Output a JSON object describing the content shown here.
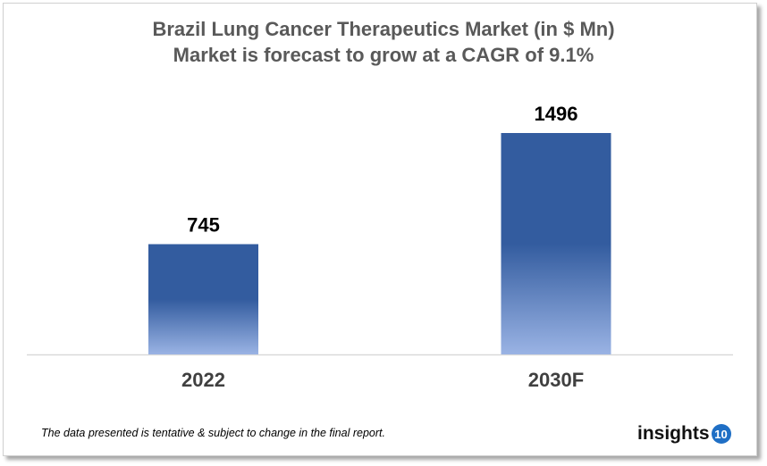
{
  "chart_data": {
    "type": "bar",
    "title": "Brazil Lung Cancer Therapeutics Market (in $ Mn)",
    "subtitle": "Market is forecast to grow at a CAGR of 9.1%",
    "categories": [
      "2022",
      "2030F"
    ],
    "values": [
      745,
      1496
    ],
    "data_labels": [
      "745",
      "1496"
    ],
    "ylim": [
      0,
      1496
    ],
    "grid": false,
    "legend": "none",
    "colors": {
      "bar_top": "#335c9f",
      "bar_bottom": "#9ab3e4",
      "axis": "#d9d9d9"
    }
  },
  "footer": {
    "note": "The data presented is tentative & subject to change in the final report.",
    "logo_text": "insights",
    "logo_badge": "10"
  }
}
